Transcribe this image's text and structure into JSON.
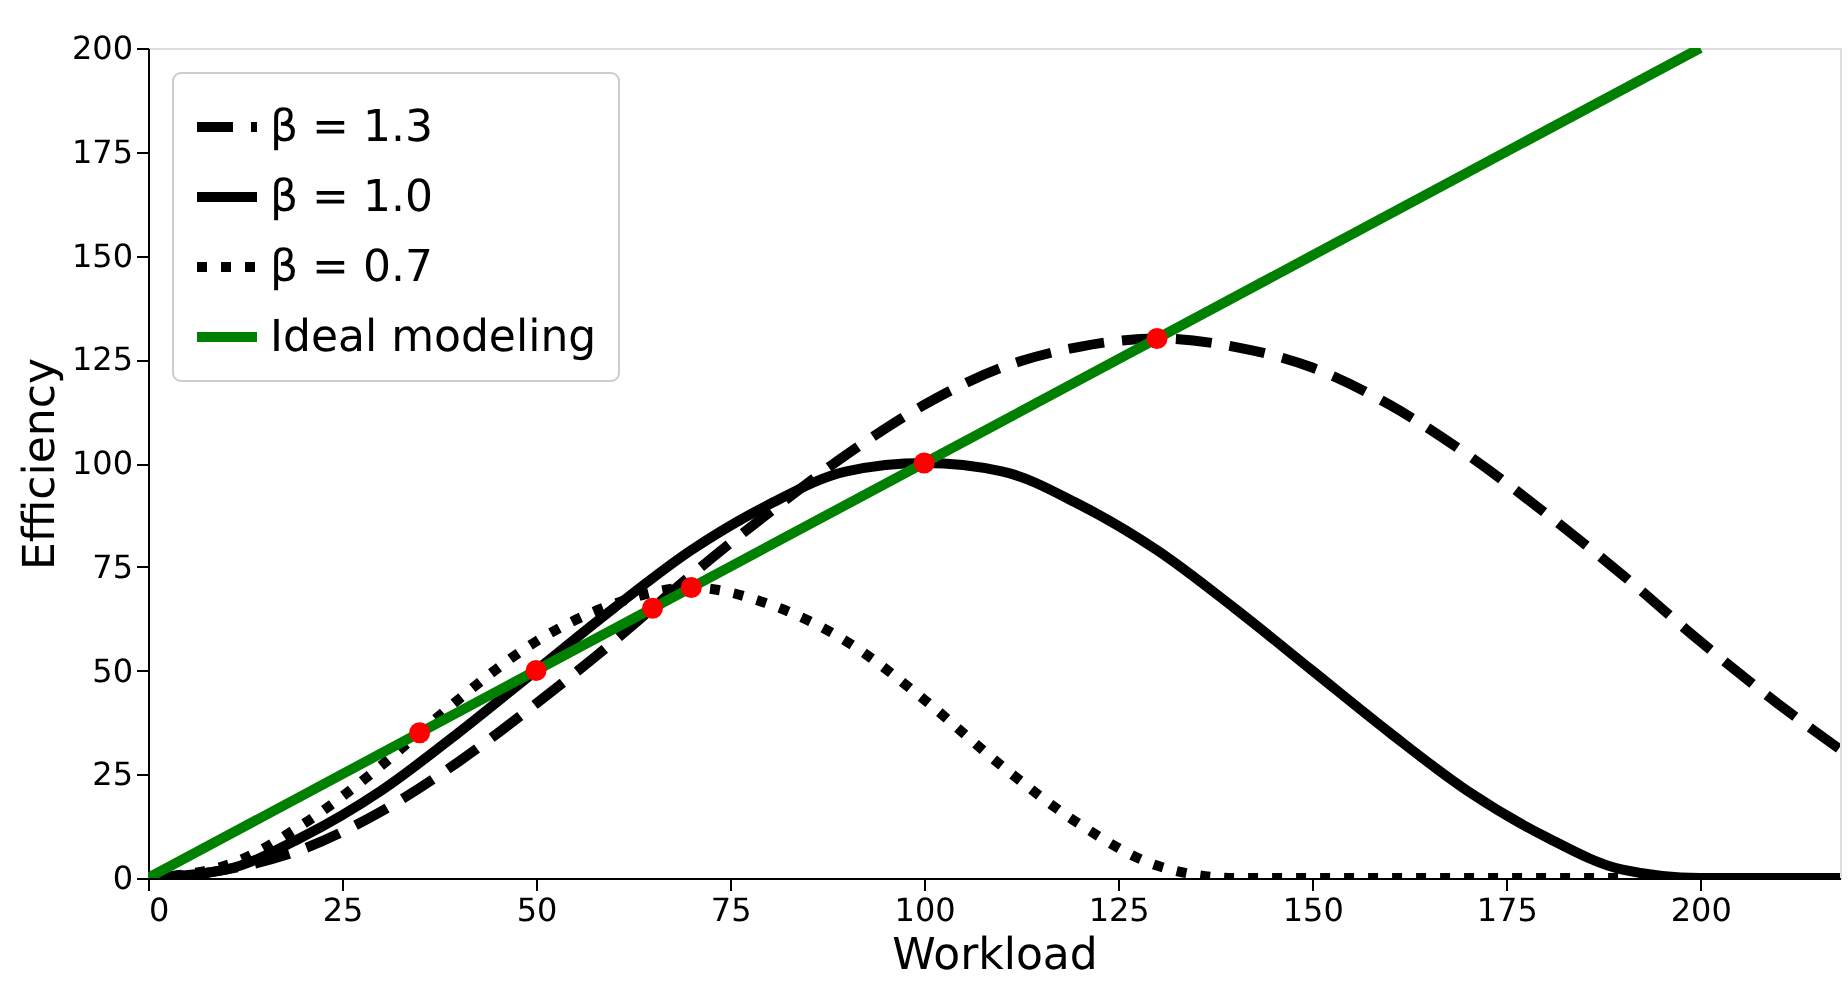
{
  "chart_data": {
    "type": "line",
    "xlabel": "Workload",
    "ylabel": "Efficiency",
    "xlim": [
      0,
      218
    ],
    "ylim": [
      0,
      200
    ],
    "xticks": [
      0,
      25,
      50,
      75,
      100,
      125,
      150,
      175,
      200
    ],
    "yticks": [
      0,
      25,
      50,
      75,
      100,
      125,
      150,
      175,
      200
    ],
    "grid": false,
    "legend": "top left",
    "series": [
      {
        "name": "β = 1.3",
        "color": "#000000",
        "line_style": "dashed",
        "x": [
          0,
          10,
          20,
          30,
          40,
          50,
          60,
          65,
          70,
          80,
          90,
          100,
          110,
          120,
          130,
          140,
          150,
          160,
          170,
          180,
          190,
          200,
          210,
          218
        ],
        "values": [
          0,
          2,
          7,
          16,
          28,
          42,
          57,
          65,
          73,
          88,
          102,
          114,
          123,
          128,
          130,
          128,
          123,
          114,
          102,
          88,
          73,
          57,
          42,
          31
        ]
      },
      {
        "name": "β = 1.0",
        "color": "#000000",
        "line_style": "solid",
        "x": [
          0,
          10,
          20,
          30,
          40,
          50,
          60,
          70,
          80,
          90,
          100,
          110,
          120,
          130,
          140,
          150,
          160,
          170,
          180,
          190,
          200,
          218
        ],
        "values": [
          0,
          2,
          10,
          21,
          35,
          50,
          65,
          79,
          90,
          98,
          100,
          98,
          90,
          79,
          65,
          50,
          35,
          21,
          10,
          2,
          0,
          0
        ]
      },
      {
        "name": "β = 0.7",
        "color": "#000000",
        "line_style": "dotted",
        "x": [
          0,
          10,
          20,
          30,
          35,
          40,
          50,
          60,
          70,
          80,
          90,
          100,
          110,
          120,
          130,
          140,
          190
        ],
        "values": [
          0,
          3,
          13,
          27,
          35,
          43,
          57,
          66,
          70,
          66,
          57,
          43,
          27,
          13,
          3,
          0,
          0
        ]
      },
      {
        "name": "Ideal modeling",
        "color": "#008000",
        "line_style": "solid",
        "x": [
          0,
          200
        ],
        "values": [
          0,
          200
        ]
      },
      {
        "type": "scatter",
        "color": "#ff0000",
        "marker": "circle",
        "x": [
          35,
          50,
          65,
          70,
          100,
          130
        ],
        "values": [
          35,
          50,
          65,
          70,
          100,
          130
        ]
      }
    ]
  }
}
